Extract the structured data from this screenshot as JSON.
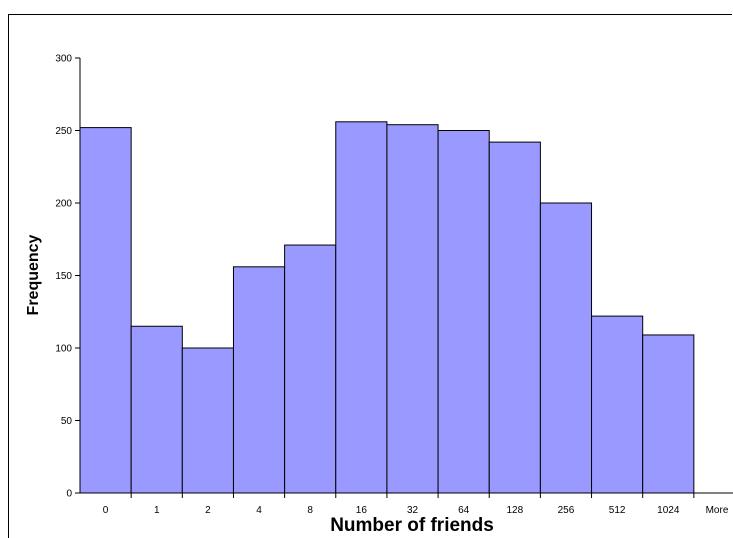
{
  "chart_data": {
    "type": "bar",
    "title": "",
    "xlabel": "Number of friends",
    "ylabel": "Frequency",
    "categories": [
      "0",
      "1",
      "2",
      "4",
      "8",
      "16",
      "32",
      "64",
      "128",
      "256",
      "512",
      "1024",
      "More"
    ],
    "values": [
      252,
      115,
      100,
      156,
      171,
      256,
      254,
      250,
      242,
      200,
      122,
      109,
      0
    ],
    "ylim": [
      0,
      300
    ],
    "yticks": [
      "0",
      "50",
      "100",
      "150",
      "200",
      "250",
      "300"
    ],
    "grid": false,
    "legend": "none",
    "bar_color": "#9999ff",
    "bar_edge_color": "#000000"
  }
}
